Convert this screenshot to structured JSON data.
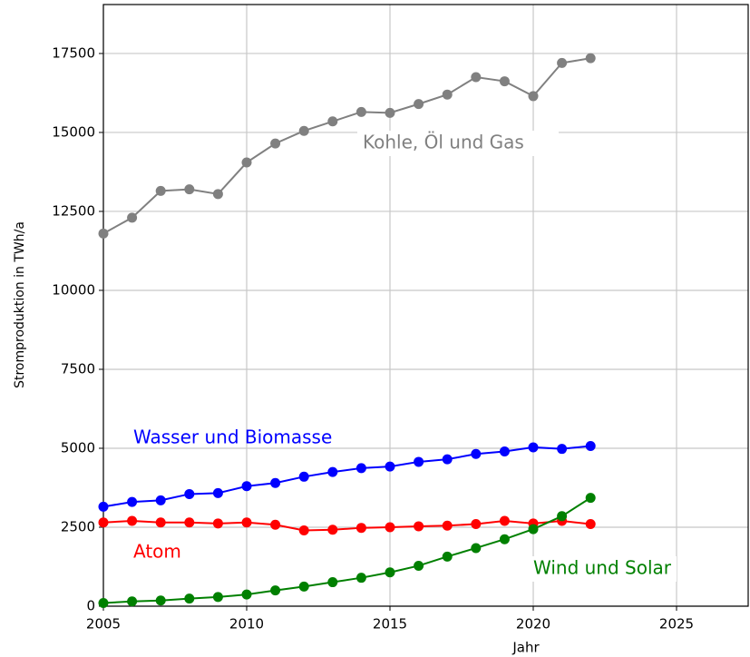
{
  "chart_data": {
    "type": "line",
    "xlabel": "Jahr",
    "ylabel": "Stromproduktion in TWh/a",
    "x": [
      2005,
      2006,
      2007,
      2008,
      2009,
      2010,
      2011,
      2012,
      2013,
      2014,
      2015,
      2016,
      2017,
      2018,
      2019,
      2020,
      2021,
      2022
    ],
    "series": [
      {
        "name": "Kohle, Öl und Gas",
        "color": "#808080",
        "values": [
          11800,
          12300,
          13150,
          13200,
          13050,
          14050,
          14650,
          15050,
          15350,
          15650,
          15620,
          15900,
          16200,
          16750,
          16620,
          16150,
          17200,
          17350
        ]
      },
      {
        "name": "Wasser und Biomasse",
        "color": "#0000ff",
        "values": [
          3150,
          3300,
          3350,
          3550,
          3580,
          3800,
          3900,
          4100,
          4250,
          4370,
          4420,
          4570,
          4650,
          4820,
          4900,
          5030,
          4980,
          5070
        ]
      },
      {
        "name": "Atom",
        "color": "#ff0000",
        "values": [
          2650,
          2700,
          2650,
          2650,
          2620,
          2650,
          2580,
          2400,
          2420,
          2480,
          2500,
          2530,
          2550,
          2600,
          2700,
          2620,
          2700,
          2600
        ]
      },
      {
        "name": "Wind und Solar",
        "color": "#008000",
        "values": [
          100,
          150,
          180,
          240,
          290,
          370,
          500,
          620,
          760,
          900,
          1070,
          1280,
          1570,
          1840,
          2120,
          2440,
          2850,
          3430
        ]
      }
    ],
    "xlim": [
      2005,
      2027.5
    ],
    "xticks": [
      2005,
      2010,
      2015,
      2020,
      2025
    ],
    "ylim": [
      0,
      19050
    ],
    "yticks": [
      0,
      2500,
      5000,
      7500,
      10000,
      12500,
      15000,
      17500
    ],
    "grid": true
  }
}
